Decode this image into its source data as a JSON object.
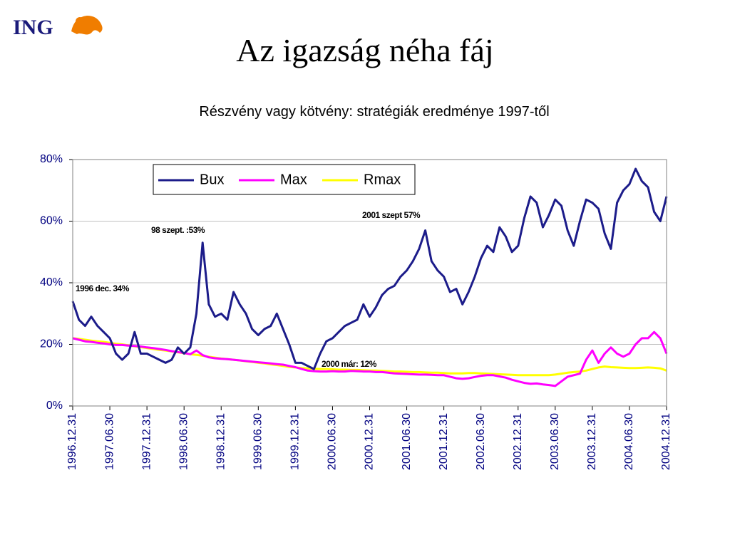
{
  "slide": {
    "logo": "ING",
    "title": "Az igazság néha fáj"
  },
  "chart_data": {
    "type": "line",
    "title": "Részvény vagy kötvény: stratégiák eredménye 1997-től",
    "x": [
      "1996.12.31",
      "1997.01.31",
      "1997.02.28",
      "1997.03.31",
      "1997.04.30",
      "1997.05.31",
      "1997.06.30",
      "1997.07.31",
      "1997.08.31",
      "1997.09.30",
      "1997.10.31",
      "1997.11.30",
      "1997.12.31",
      "1998.01.31",
      "1998.02.28",
      "1998.03.31",
      "1998.04.30",
      "1998.05.31",
      "1998.06.30",
      "1998.07.31",
      "1998.08.31",
      "1998.09.30",
      "1998.10.31",
      "1998.11.30",
      "1998.12.31",
      "1999.01.31",
      "1999.02.28",
      "1999.03.31",
      "1999.04.30",
      "1999.05.31",
      "1999.06.30",
      "1999.07.31",
      "1999.08.31",
      "1999.09.30",
      "1999.10.31",
      "1999.11.30",
      "1999.12.31",
      "2000.01.31",
      "2000.02.29",
      "2000.03.31",
      "2000.04.30",
      "2000.05.31",
      "2000.06.30",
      "2000.07.31",
      "2000.08.31",
      "2000.09.30",
      "2000.10.31",
      "2000.11.30",
      "2000.12.31",
      "2001.01.31",
      "2001.02.28",
      "2001.03.31",
      "2001.04.30",
      "2001.05.31",
      "2001.06.30",
      "2001.07.31",
      "2001.08.31",
      "2001.09.30",
      "2001.10.31",
      "2001.11.30",
      "2001.12.31",
      "2002.01.31",
      "2002.02.28",
      "2002.03.31",
      "2002.04.30",
      "2002.05.31",
      "2002.06.30",
      "2002.07.31",
      "2002.08.31",
      "2002.09.30",
      "2002.10.31",
      "2002.11.30",
      "2002.12.31",
      "2003.01.31",
      "2003.02.28",
      "2003.03.31",
      "2003.04.30",
      "2003.05.31",
      "2003.06.30",
      "2003.07.31",
      "2003.08.31",
      "2003.09.30",
      "2003.10.31",
      "2003.11.30",
      "2003.12.31",
      "2004.01.31",
      "2004.02.29",
      "2004.03.31",
      "2004.04.30",
      "2004.05.31",
      "2004.06.30",
      "2004.07.31",
      "2004.08.31",
      "2004.09.30",
      "2004.10.31",
      "2004.11.30",
      "2004.12.31"
    ],
    "series": [
      {
        "name": "Bux",
        "color": "#1c1c8a",
        "values": [
          34,
          28,
          26,
          29,
          26,
          24,
          22,
          17,
          15,
          17,
          24,
          17,
          17,
          16,
          15,
          14,
          15,
          19,
          17,
          19,
          30,
          53,
          33,
          29,
          30,
          28,
          37,
          33,
          30,
          25,
          23,
          25,
          26,
          30,
          25,
          20,
          14,
          14,
          13,
          12,
          17,
          21,
          22,
          24,
          26,
          27,
          28,
          33,
          29,
          32,
          36,
          38,
          39,
          42,
          44,
          47,
          51,
          57,
          47,
          44,
          42,
          37,
          38,
          33,
          37,
          42,
          48,
          52,
          50,
          58,
          55,
          50,
          52,
          61,
          68,
          66,
          58,
          62,
          67,
          65,
          57,
          52,
          60,
          67,
          66,
          64,
          56,
          51,
          66,
          70,
          72,
          77,
          73,
          71,
          63,
          60,
          68
        ]
      },
      {
        "name": "Max",
        "color": "#ff00ff",
        "values": [
          22,
          21.5,
          21,
          20.8,
          20.5,
          20.3,
          20,
          19.8,
          19.8,
          19.6,
          19.5,
          19.3,
          19,
          18.8,
          18.5,
          18.2,
          17.8,
          17.5,
          17.2,
          16.8,
          18,
          16.5,
          15.8,
          15.5,
          15.3,
          15.2,
          15,
          14.8,
          14.6,
          14.4,
          14.2,
          14,
          13.8,
          13.6,
          13.4,
          13,
          12.6,
          12,
          11.5,
          11.3,
          11.2,
          11.2,
          11.3,
          11.2,
          11.2,
          11.4,
          11.3,
          11.2,
          11.2,
          11,
          11,
          10.8,
          10.6,
          10.5,
          10.4,
          10.3,
          10.2,
          10.2,
          10.1,
          10,
          10,
          9.5,
          9,
          8.8,
          9,
          9.4,
          9.8,
          10,
          10,
          9.6,
          9.2,
          8.5,
          8,
          7.5,
          7.2,
          7.3,
          7,
          6.8,
          6.5,
          8,
          9.5,
          10,
          10.5,
          15,
          18,
          14,
          17,
          19,
          17,
          16,
          17,
          20,
          22,
          22,
          24,
          22,
          17
        ]
      },
      {
        "name": "Rmax",
        "color": "#ffff00",
        "values": [
          22,
          21.8,
          21.5,
          21.2,
          21,
          20.8,
          20.5,
          20.2,
          20,
          19.7,
          19.4,
          19.1,
          18.8,
          18.5,
          18.2,
          18,
          17.7,
          17.4,
          17.1,
          16.8,
          16.6,
          16.3,
          16,
          15.7,
          15.4,
          15.2,
          15,
          14.8,
          14.5,
          14.3,
          14,
          13.8,
          13.5,
          13.3,
          13,
          12.7,
          12.5,
          12.3,
          12.2,
          12.1,
          12,
          12,
          11.9,
          11.8,
          11.8,
          11.7,
          11.7,
          11.6,
          11.5,
          11.5,
          11.4,
          11.3,
          11.2,
          11.2,
          11.1,
          11,
          11,
          10.9,
          10.8,
          10.8,
          10.7,
          10.6,
          10.6,
          10.6,
          10.7,
          10.7,
          10.6,
          10.5,
          10.4,
          10.3,
          10.2,
          10.1,
          10,
          10,
          10,
          10,
          10,
          10,
          10.2,
          10.5,
          10.8,
          11,
          11.2,
          11.5,
          12,
          12.5,
          12.8,
          12.6,
          12.5,
          12.4,
          12.3,
          12.3,
          12.4,
          12.5,
          12.4,
          12.2,
          11.5
        ]
      }
    ],
    "xticks": [
      "1996.12.31",
      "1997.06.30",
      "1997.12.31",
      "1998.06.30",
      "1998.12.31",
      "1999.06.30",
      "1999.12.31",
      "2000.06.30",
      "2000.12.31",
      "2001.06.30",
      "2001.12.31",
      "2002.06.30",
      "2002.12.31",
      "2003.06.30",
      "2003.12.31",
      "2004.06.30",
      "2004.12.31"
    ],
    "ylim": [
      0,
      80
    ],
    "yticks": [
      {
        "value": 0,
        "label": "0%"
      },
      {
        "value": 20,
        "label": "20%"
      },
      {
        "value": 40,
        "label": "40%"
      },
      {
        "value": 60,
        "label": "60%"
      },
      {
        "value": 80,
        "label": "80%"
      }
    ],
    "grid": true,
    "annotations": [
      "1996 dec. 34%",
      "98 szept. :53%",
      "2001 szept 57%",
      "2000 már: 12%"
    ]
  }
}
